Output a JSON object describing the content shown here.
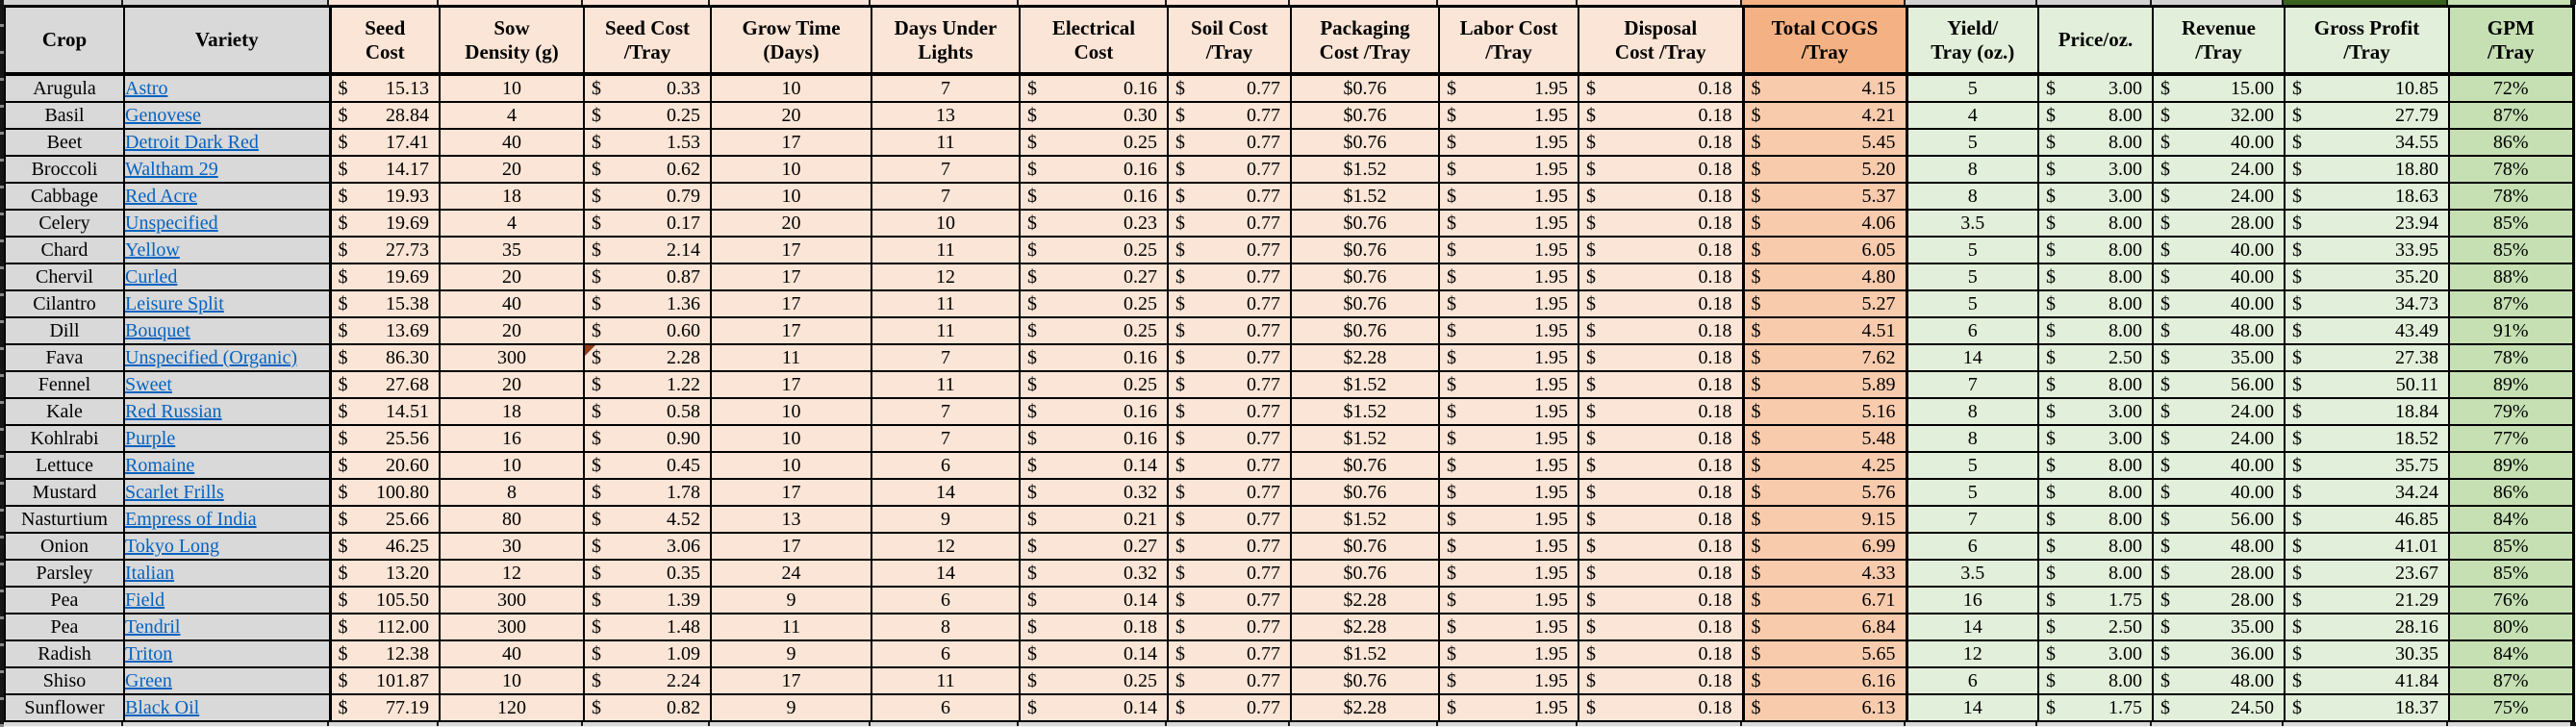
{
  "sheet": {
    "description_title": "Crop profitability per tray table",
    "currency_symbol": "$"
  },
  "colors": {
    "plain_fill": "#d9d9d9",
    "cost_fill": "#fbe5d6",
    "cogs_header_fill": "#f4b183",
    "cogs_cell_fill": "#f8cbad",
    "green_fill": "#e2efda",
    "gpm_fill": "#c6e0b4",
    "link_blue": "#0563c1",
    "gridline": "#000000",
    "comment_marker": "#8f3a18",
    "strip_dark_green": "#38631f"
  },
  "table": {
    "currency_symbol": "$",
    "columns": [
      {
        "id": "crop",
        "label": "Crop",
        "group": "plain",
        "format": "text"
      },
      {
        "id": "variety",
        "label": "Variety",
        "group": "plain",
        "format": "link"
      },
      {
        "id": "seed_cost",
        "label": "Seed\nCost",
        "group": "cost",
        "format": "accounting"
      },
      {
        "id": "sow_density",
        "label": "Sow\nDensity (g)",
        "group": "cost",
        "format": "center"
      },
      {
        "id": "seed_cost_tray",
        "label": "Seed Cost\n/Tray",
        "group": "cost",
        "format": "accounting"
      },
      {
        "id": "grow_time",
        "label": "Grow Time\n(Days)",
        "group": "cost",
        "format": "center"
      },
      {
        "id": "days_under_lights",
        "label": "Days Under\nLights",
        "group": "cost",
        "format": "center"
      },
      {
        "id": "electrical_cost",
        "label": "Electrical\nCost",
        "group": "cost",
        "format": "accounting"
      },
      {
        "id": "soil_cost_tray",
        "label": "Soil Cost\n/Tray",
        "group": "cost",
        "format": "accounting"
      },
      {
        "id": "packaging_cost_tray",
        "label": "Packaging\nCost /Tray",
        "group": "cost",
        "format": "center"
      },
      {
        "id": "labor_cost_tray",
        "label": "Labor Cost\n/Tray",
        "group": "cost",
        "format": "accounting"
      },
      {
        "id": "disposal_cost_tray",
        "label": "Disposal\nCost /Tray",
        "group": "cost",
        "format": "accounting"
      },
      {
        "id": "total_cogs_tray",
        "label": "Total COGS\n/Tray",
        "group": "cogs",
        "format": "accounting"
      },
      {
        "id": "yield_tray",
        "label": "Yield/\nTray (oz.)",
        "group": "green",
        "format": "center"
      },
      {
        "id": "price_oz",
        "label": "Price/oz.",
        "group": "green",
        "format": "accounting"
      },
      {
        "id": "revenue_tray",
        "label": "Revenue\n/Tray",
        "group": "green",
        "format": "accounting"
      },
      {
        "id": "gross_profit_tray",
        "label": "Gross Profit\n/Tray",
        "group": "green",
        "format": "accounting"
      },
      {
        "id": "gpm_tray",
        "label": "GPM\n/Tray",
        "group": "gpm",
        "format": "center"
      }
    ],
    "rows": [
      {
        "crop": "Arugula",
        "variety": "Astro",
        "seed_cost": "15.13",
        "sow_density": "10",
        "seed_cost_tray": "0.33",
        "grow_time": "10",
        "days_under_lights": "7",
        "electrical_cost": "0.16",
        "soil_cost_tray": "0.77",
        "packaging_cost_tray": "$0.76",
        "labor_cost_tray": "1.95",
        "disposal_cost_tray": "0.18",
        "total_cogs_tray": "4.15",
        "yield_tray": "5",
        "price_oz": "3.00",
        "revenue_tray": "15.00",
        "gross_profit_tray": "10.85",
        "gpm_tray": "72%"
      },
      {
        "crop": "Basil",
        "variety": "Genovese",
        "seed_cost": "28.84",
        "sow_density": "4",
        "seed_cost_tray": "0.25",
        "grow_time": "20",
        "days_under_lights": "13",
        "electrical_cost": "0.30",
        "soil_cost_tray": "0.77",
        "packaging_cost_tray": "$0.76",
        "labor_cost_tray": "1.95",
        "disposal_cost_tray": "0.18",
        "total_cogs_tray": "4.21",
        "yield_tray": "4",
        "price_oz": "8.00",
        "revenue_tray": "32.00",
        "gross_profit_tray": "27.79",
        "gpm_tray": "87%"
      },
      {
        "crop": "Beet",
        "variety": "Detroit Dark Red",
        "seed_cost": "17.41",
        "sow_density": "40",
        "seed_cost_tray": "1.53",
        "grow_time": "17",
        "days_under_lights": "11",
        "electrical_cost": "0.25",
        "soil_cost_tray": "0.77",
        "packaging_cost_tray": "$0.76",
        "labor_cost_tray": "1.95",
        "disposal_cost_tray": "0.18",
        "total_cogs_tray": "5.45",
        "yield_tray": "5",
        "price_oz": "8.00",
        "revenue_tray": "40.00",
        "gross_profit_tray": "34.55",
        "gpm_tray": "86%"
      },
      {
        "crop": "Broccoli",
        "variety": "Waltham 29",
        "seed_cost": "14.17",
        "sow_density": "20",
        "seed_cost_tray": "0.62",
        "grow_time": "10",
        "days_under_lights": "7",
        "electrical_cost": "0.16",
        "soil_cost_tray": "0.77",
        "packaging_cost_tray": "$1.52",
        "labor_cost_tray": "1.95",
        "disposal_cost_tray": "0.18",
        "total_cogs_tray": "5.20",
        "yield_tray": "8",
        "price_oz": "3.00",
        "revenue_tray": "24.00",
        "gross_profit_tray": "18.80",
        "gpm_tray": "78%"
      },
      {
        "crop": "Cabbage",
        "variety": "Red Acre",
        "seed_cost": "19.93",
        "sow_density": "18",
        "seed_cost_tray": "0.79",
        "grow_time": "10",
        "days_under_lights": "7",
        "electrical_cost": "0.16",
        "soil_cost_tray": "0.77",
        "packaging_cost_tray": "$1.52",
        "labor_cost_tray": "1.95",
        "disposal_cost_tray": "0.18",
        "total_cogs_tray": "5.37",
        "yield_tray": "8",
        "price_oz": "3.00",
        "revenue_tray": "24.00",
        "gross_profit_tray": "18.63",
        "gpm_tray": "78%"
      },
      {
        "crop": "Celery",
        "variety": "Unspecified",
        "seed_cost": "19.69",
        "sow_density": "4",
        "seed_cost_tray": "0.17",
        "grow_time": "20",
        "days_under_lights": "10",
        "electrical_cost": "0.23",
        "soil_cost_tray": "0.77",
        "packaging_cost_tray": "$0.76",
        "labor_cost_tray": "1.95",
        "disposal_cost_tray": "0.18",
        "total_cogs_tray": "4.06",
        "yield_tray": "3.5",
        "price_oz": "8.00",
        "revenue_tray": "28.00",
        "gross_profit_tray": "23.94",
        "gpm_tray": "85%"
      },
      {
        "crop": "Chard",
        "variety": "Yellow",
        "seed_cost": "27.73",
        "sow_density": "35",
        "seed_cost_tray": "2.14",
        "grow_time": "17",
        "days_under_lights": "11",
        "electrical_cost": "0.25",
        "soil_cost_tray": "0.77",
        "packaging_cost_tray": "$0.76",
        "labor_cost_tray": "1.95",
        "disposal_cost_tray": "0.18",
        "total_cogs_tray": "6.05",
        "yield_tray": "5",
        "price_oz": "8.00",
        "revenue_tray": "40.00",
        "gross_profit_tray": "33.95",
        "gpm_tray": "85%"
      },
      {
        "crop": "Chervil",
        "variety": "Curled",
        "seed_cost": "19.69",
        "sow_density": "20",
        "seed_cost_tray": "0.87",
        "grow_time": "17",
        "days_under_lights": "12",
        "electrical_cost": "0.27",
        "soil_cost_tray": "0.77",
        "packaging_cost_tray": "$0.76",
        "labor_cost_tray": "1.95",
        "disposal_cost_tray": "0.18",
        "total_cogs_tray": "4.80",
        "yield_tray": "5",
        "price_oz": "8.00",
        "revenue_tray": "40.00",
        "gross_profit_tray": "35.20",
        "gpm_tray": "88%"
      },
      {
        "crop": "Cilantro",
        "variety": "Leisure Split",
        "seed_cost": "15.38",
        "sow_density": "40",
        "seed_cost_tray": "1.36",
        "grow_time": "17",
        "days_under_lights": "11",
        "electrical_cost": "0.25",
        "soil_cost_tray": "0.77",
        "packaging_cost_tray": "$0.76",
        "labor_cost_tray": "1.95",
        "disposal_cost_tray": "0.18",
        "total_cogs_tray": "5.27",
        "yield_tray": "5",
        "price_oz": "8.00",
        "revenue_tray": "40.00",
        "gross_profit_tray": "34.73",
        "gpm_tray": "87%"
      },
      {
        "crop": "Dill",
        "variety": "Bouquet",
        "seed_cost": "13.69",
        "sow_density": "20",
        "seed_cost_tray": "0.60",
        "grow_time": "17",
        "days_under_lights": "11",
        "electrical_cost": "0.25",
        "soil_cost_tray": "0.77",
        "packaging_cost_tray": "$0.76",
        "labor_cost_tray": "1.95",
        "disposal_cost_tray": "0.18",
        "total_cogs_tray": "4.51",
        "yield_tray": "6",
        "price_oz": "8.00",
        "revenue_tray": "48.00",
        "gross_profit_tray": "43.49",
        "gpm_tray": "91%"
      },
      {
        "crop": "Fava",
        "variety": "Unspecified (Organic)",
        "seed_cost": "86.30",
        "sow_density": "300",
        "seed_cost_tray": "2.28",
        "grow_time": "11",
        "days_under_lights": "7",
        "electrical_cost": "0.16",
        "soil_cost_tray": "0.77",
        "packaging_cost_tray": "$2.28",
        "labor_cost_tray": "1.95",
        "disposal_cost_tray": "0.18",
        "total_cogs_tray": "7.62",
        "yield_tray": "14",
        "price_oz": "2.50",
        "revenue_tray": "35.00",
        "gross_profit_tray": "27.38",
        "gpm_tray": "78%"
      },
      {
        "crop": "Fennel",
        "variety": "Sweet",
        "seed_cost": "27.68",
        "sow_density": "20",
        "seed_cost_tray": "1.22",
        "grow_time": "17",
        "days_under_lights": "11",
        "electrical_cost": "0.25",
        "soil_cost_tray": "0.77",
        "packaging_cost_tray": "$1.52",
        "labor_cost_tray": "1.95",
        "disposal_cost_tray": "0.18",
        "total_cogs_tray": "5.89",
        "yield_tray": "7",
        "price_oz": "8.00",
        "revenue_tray": "56.00",
        "gross_profit_tray": "50.11",
        "gpm_tray": "89%"
      },
      {
        "crop": "Kale",
        "variety": "Red Russian",
        "seed_cost": "14.51",
        "sow_density": "18",
        "seed_cost_tray": "0.58",
        "grow_time": "10",
        "days_under_lights": "7",
        "electrical_cost": "0.16",
        "soil_cost_tray": "0.77",
        "packaging_cost_tray": "$1.52",
        "labor_cost_tray": "1.95",
        "disposal_cost_tray": "0.18",
        "total_cogs_tray": "5.16",
        "yield_tray": "8",
        "price_oz": "3.00",
        "revenue_tray": "24.00",
        "gross_profit_tray": "18.84",
        "gpm_tray": "79%"
      },
      {
        "crop": "Kohlrabi",
        "variety": "Purple",
        "seed_cost": "25.56",
        "sow_density": "16",
        "seed_cost_tray": "0.90",
        "grow_time": "10",
        "days_under_lights": "7",
        "electrical_cost": "0.16",
        "soil_cost_tray": "0.77",
        "packaging_cost_tray": "$1.52",
        "labor_cost_tray": "1.95",
        "disposal_cost_tray": "0.18",
        "total_cogs_tray": "5.48",
        "yield_tray": "8",
        "price_oz": "3.00",
        "revenue_tray": "24.00",
        "gross_profit_tray": "18.52",
        "gpm_tray": "77%"
      },
      {
        "crop": "Lettuce",
        "variety": "Romaine",
        "seed_cost": "20.60",
        "sow_density": "10",
        "seed_cost_tray": "0.45",
        "grow_time": "10",
        "days_under_lights": "6",
        "electrical_cost": "0.14",
        "soil_cost_tray": "0.77",
        "packaging_cost_tray": "$0.76",
        "labor_cost_tray": "1.95",
        "disposal_cost_tray": "0.18",
        "total_cogs_tray": "4.25",
        "yield_tray": "5",
        "price_oz": "8.00",
        "revenue_tray": "40.00",
        "gross_profit_tray": "35.75",
        "gpm_tray": "89%"
      },
      {
        "crop": "Mustard",
        "variety": "Scarlet Frills",
        "seed_cost": "100.80",
        "sow_density": "8",
        "seed_cost_tray": "1.78",
        "grow_time": "17",
        "days_under_lights": "14",
        "electrical_cost": "0.32",
        "soil_cost_tray": "0.77",
        "packaging_cost_tray": "$0.76",
        "labor_cost_tray": "1.95",
        "disposal_cost_tray": "0.18",
        "total_cogs_tray": "5.76",
        "yield_tray": "5",
        "price_oz": "8.00",
        "revenue_tray": "40.00",
        "gross_profit_tray": "34.24",
        "gpm_tray": "86%"
      },
      {
        "crop": "Nasturtium",
        "variety": "Empress of India",
        "seed_cost": "25.66",
        "sow_density": "80",
        "seed_cost_tray": "4.52",
        "grow_time": "13",
        "days_under_lights": "9",
        "electrical_cost": "0.21",
        "soil_cost_tray": "0.77",
        "packaging_cost_tray": "$1.52",
        "labor_cost_tray": "1.95",
        "disposal_cost_tray": "0.18",
        "total_cogs_tray": "9.15",
        "yield_tray": "7",
        "price_oz": "8.00",
        "revenue_tray": "56.00",
        "gross_profit_tray": "46.85",
        "gpm_tray": "84%"
      },
      {
        "crop": "Onion",
        "variety": "Tokyo Long",
        "seed_cost": "46.25",
        "sow_density": "30",
        "seed_cost_tray": "3.06",
        "grow_time": "17",
        "days_under_lights": "12",
        "electrical_cost": "0.27",
        "soil_cost_tray": "0.77",
        "packaging_cost_tray": "$0.76",
        "labor_cost_tray": "1.95",
        "disposal_cost_tray": "0.18",
        "total_cogs_tray": "6.99",
        "yield_tray": "6",
        "price_oz": "8.00",
        "revenue_tray": "48.00",
        "gross_profit_tray": "41.01",
        "gpm_tray": "85%"
      },
      {
        "crop": "Parsley",
        "variety": "Italian",
        "seed_cost": "13.20",
        "sow_density": "12",
        "seed_cost_tray": "0.35",
        "grow_time": "24",
        "days_under_lights": "14",
        "electrical_cost": "0.32",
        "soil_cost_tray": "0.77",
        "packaging_cost_tray": "$0.76",
        "labor_cost_tray": "1.95",
        "disposal_cost_tray": "0.18",
        "total_cogs_tray": "4.33",
        "yield_tray": "3.5",
        "price_oz": "8.00",
        "revenue_tray": "28.00",
        "gross_profit_tray": "23.67",
        "gpm_tray": "85%"
      },
      {
        "crop": "Pea",
        "variety": "Field",
        "seed_cost": "105.50",
        "sow_density": "300",
        "seed_cost_tray": "1.39",
        "grow_time": "9",
        "days_under_lights": "6",
        "electrical_cost": "0.14",
        "soil_cost_tray": "0.77",
        "packaging_cost_tray": "$2.28",
        "labor_cost_tray": "1.95",
        "disposal_cost_tray": "0.18",
        "total_cogs_tray": "6.71",
        "yield_tray": "16",
        "price_oz": "1.75",
        "revenue_tray": "28.00",
        "gross_profit_tray": "21.29",
        "gpm_tray": "76%"
      },
      {
        "crop": "Pea",
        "variety": "Tendril",
        "seed_cost": "112.00",
        "sow_density": "300",
        "seed_cost_tray": "1.48",
        "grow_time": "11",
        "days_under_lights": "8",
        "electrical_cost": "0.18",
        "soil_cost_tray": "0.77",
        "packaging_cost_tray": "$2.28",
        "labor_cost_tray": "1.95",
        "disposal_cost_tray": "0.18",
        "total_cogs_tray": "6.84",
        "yield_tray": "14",
        "price_oz": "2.50",
        "revenue_tray": "35.00",
        "gross_profit_tray": "28.16",
        "gpm_tray": "80%"
      },
      {
        "crop": "Radish",
        "variety": "Triton",
        "seed_cost": "12.38",
        "sow_density": "40",
        "seed_cost_tray": "1.09",
        "grow_time": "9",
        "days_under_lights": "6",
        "electrical_cost": "0.14",
        "soil_cost_tray": "0.77",
        "packaging_cost_tray": "$1.52",
        "labor_cost_tray": "1.95",
        "disposal_cost_tray": "0.18",
        "total_cogs_tray": "5.65",
        "yield_tray": "12",
        "price_oz": "3.00",
        "revenue_tray": "36.00",
        "gross_profit_tray": "30.35",
        "gpm_tray": "84%"
      },
      {
        "crop": "Shiso",
        "variety": "Green",
        "seed_cost": "101.87",
        "sow_density": "10",
        "seed_cost_tray": "2.24",
        "grow_time": "17",
        "days_under_lights": "11",
        "electrical_cost": "0.25",
        "soil_cost_tray": "0.77",
        "packaging_cost_tray": "$0.76",
        "labor_cost_tray": "1.95",
        "disposal_cost_tray": "0.18",
        "total_cogs_tray": "6.16",
        "yield_tray": "6",
        "price_oz": "8.00",
        "revenue_tray": "48.00",
        "gross_profit_tray": "41.84",
        "gpm_tray": "87%"
      },
      {
        "crop": "Sunflower",
        "variety": "Black Oil",
        "seed_cost": "77.19",
        "sow_density": "120",
        "seed_cost_tray": "0.82",
        "grow_time": "9",
        "days_under_lights": "6",
        "electrical_cost": "0.14",
        "soil_cost_tray": "0.77",
        "packaging_cost_tray": "$2.28",
        "labor_cost_tray": "1.95",
        "disposal_cost_tray": "0.18",
        "total_cogs_tray": "6.13",
        "yield_tray": "14",
        "price_oz": "1.75",
        "revenue_tray": "24.50",
        "gross_profit_tray": "18.37",
        "gpm_tray": "75%"
      }
    ],
    "annotations": {
      "comment_marker_row_index": 10,
      "comment_marker_column": "seed_cost_tray"
    }
  }
}
